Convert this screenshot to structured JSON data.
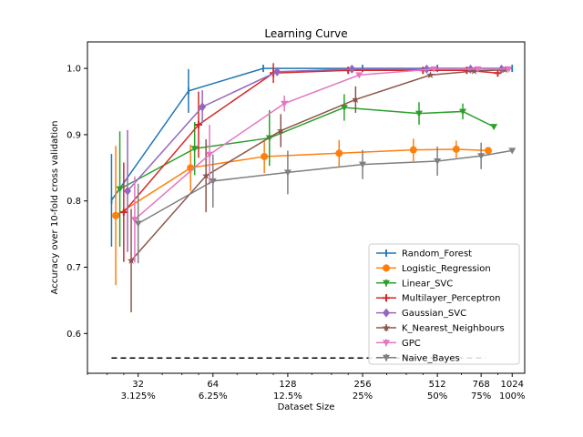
{
  "chart_data": {
    "type": "line",
    "title": "Learning Curve",
    "xlabel": "Dataset Size",
    "ylabel": "Accuracy over 10-fold cross validation",
    "xscale": "log2",
    "xlim": [
      20,
      1150
    ],
    "ylim": [
      0.54,
      1.04
    ],
    "x_ticks": [
      {
        "value": 32,
        "label": "32",
        "sub": "3.125%"
      },
      {
        "value": 64,
        "label": "64",
        "sub": "6.25%"
      },
      {
        "value": 128,
        "label": "128",
        "sub": "12.5%"
      },
      {
        "value": 256,
        "label": "256",
        "sub": "25%"
      },
      {
        "value": 512,
        "label": "512",
        "sub": "50%"
      },
      {
        "value": 768,
        "label": "768",
        "sub": "75%"
      },
      {
        "value": 1024,
        "label": "1024",
        "sub": "100%"
      }
    ],
    "y_ticks": [
      "0.6",
      "0.7",
      "0.8",
      "0.9",
      "1.0"
    ],
    "legend_position": "lower-right",
    "grid": false,
    "baseline": {
      "y": 0.563,
      "x_range": [
        25,
        800
      ],
      "style": "dashed",
      "color": "#000000"
    },
    "series": [
      {
        "name": "Random_Forest",
        "color": "#1f77b4",
        "marker": "vline",
        "x": [
          25,
          51,
          102,
          256,
          512,
          1024
        ],
        "y": [
          0.801,
          0.966,
          1.0,
          1.0,
          1.0,
          1.0
        ],
        "err": [
          0.07,
          0.033,
          0.0,
          0.0,
          0.0,
          0.0
        ]
      },
      {
        "name": "Logistic_Regression",
        "color": "#ff7f0e",
        "marker": "circle",
        "x": [
          26,
          52,
          103,
          206,
          410,
          610,
          820
        ],
        "y": [
          0.778,
          0.85,
          0.867,
          0.872,
          0.877,
          0.878,
          0.876
        ],
        "err": [
          0.105,
          0.035,
          0.025,
          0.02,
          0.017,
          0.013,
          0.0
        ]
      },
      {
        "name": "Linear_SVC",
        "color": "#2ca02c",
        "marker": "tri_down",
        "x": [
          27,
          54,
          108,
          216,
          432,
          648,
          864
        ],
        "y": [
          0.818,
          0.879,
          0.895,
          0.941,
          0.932,
          0.935,
          0.912
        ],
        "err": [
          0.087,
          0.04,
          0.042,
          0.02,
          0.017,
          0.012,
          0.0
        ]
      },
      {
        "name": "Multilayer_Perceptron",
        "color": "#d62728",
        "marker": "plus",
        "x": [
          28,
          56,
          112,
          224,
          448,
          672,
          896
        ],
        "y": [
          0.783,
          0.915,
          0.993,
          0.997,
          0.997,
          0.997,
          0.993
        ],
        "err": [
          0.075,
          0.05,
          0.015,
          0.0,
          0.0,
          0.0,
          0.0
        ]
      },
      {
        "name": "Gaussian_SVC",
        "color": "#9467bd",
        "marker": "diamond",
        "x": [
          29,
          58,
          116,
          232,
          464,
          696,
          928
        ],
        "y": [
          0.815,
          0.942,
          0.995,
          0.999,
          0.999,
          0.999,
          0.999
        ],
        "err": [
          0.092,
          0.025,
          0.0,
          0.0,
          0.0,
          0.0,
          0.0
        ]
      },
      {
        "name": "K_Nearest_Neighbours",
        "color": "#8c564b",
        "marker": "star",
        "x": [
          30,
          60,
          120,
          240,
          480,
          720,
          960
        ],
        "y": [
          0.71,
          0.838,
          0.906,
          0.953,
          0.99,
          0.996,
          0.998
        ],
        "err": [
          0.078,
          0.055,
          0.025,
          0.02,
          0.0,
          0.0,
          0.0
        ]
      },
      {
        "name": "GPC",
        "color": "#e377c2",
        "marker": "tri_down",
        "x": [
          31,
          62,
          124,
          248,
          496,
          744,
          992
        ],
        "y": [
          0.772,
          0.87,
          0.947,
          0.99,
          0.999,
          0.999,
          0.999
        ],
        "err": [
          0.065,
          0.045,
          0.012,
          0.0,
          0.0,
          0.0,
          0.0
        ]
      },
      {
        "name": "Naive_Bayes",
        "color": "#7f7f7f",
        "marker": "tri_down",
        "x": [
          32,
          64,
          128,
          256,
          512,
          768,
          1024
        ],
        "y": [
          0.766,
          0.83,
          0.843,
          0.855,
          0.86,
          0.868,
          0.876
        ],
        "err": [
          0.06,
          0.04,
          0.033,
          0.022,
          0.022,
          0.02,
          0.0
        ]
      }
    ]
  }
}
